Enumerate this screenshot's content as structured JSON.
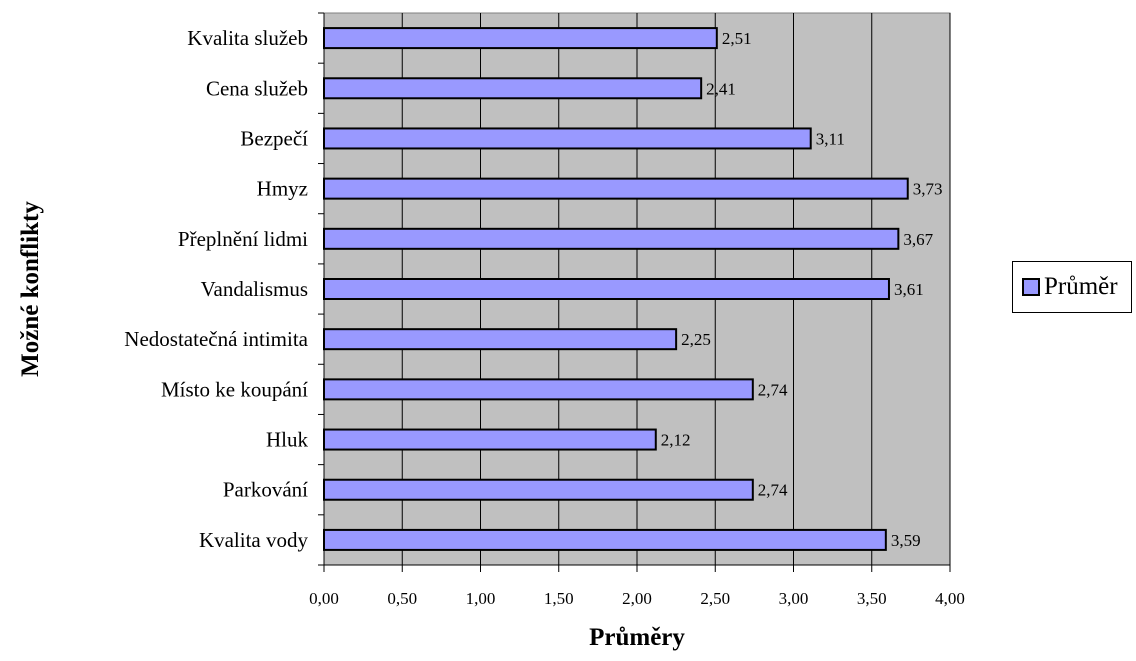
{
  "chart_data": {
    "type": "bar",
    "orientation": "horizontal",
    "categories": [
      "Kvalita služeb",
      "Cena služeb",
      "Bezpečí",
      "Hmyz",
      "Přeplnění lidmi",
      "Vandalismus",
      "Nedostatečná intimita",
      "Místo ke koupání",
      "Hluk",
      "Parkování",
      "Kvalita vody"
    ],
    "series": [
      {
        "name": "Průměr",
        "values": [
          2.51,
          2.41,
          3.11,
          3.73,
          3.67,
          3.61,
          2.25,
          2.74,
          2.12,
          2.74,
          3.59
        ]
      }
    ],
    "data_labels": [
      "2,51",
      "2,41",
      "3,11",
      "3,73",
      "3,67",
      "3,61",
      "2,25",
      "2,74",
      "2,12",
      "2,74",
      "3,59"
    ],
    "xlim": [
      0,
      4
    ],
    "x_ticks": [
      "0,00",
      "0,50",
      "1,00",
      "1,50",
      "2,00",
      "2,50",
      "3,00",
      "3,50",
      "4,00"
    ],
    "xlabel": "Průměry",
    "ylabel": "Možné konflikty",
    "grid": true,
    "legend_position": "right",
    "colors": {
      "bar_fill": "#9999ff",
      "bar_stroke": "#000000",
      "plot_background": "#c0c0c0",
      "gridline": "#000000"
    }
  },
  "legend": {
    "label": "Průměr"
  }
}
